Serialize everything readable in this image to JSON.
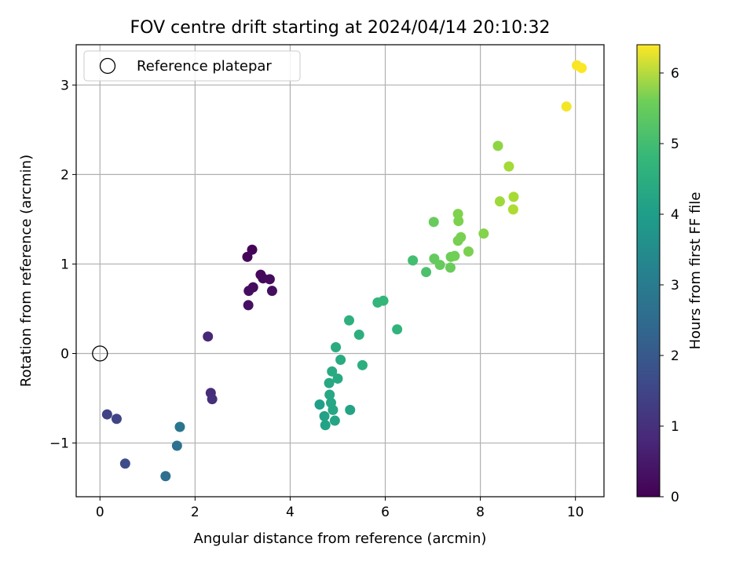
{
  "chart_data": {
    "type": "scatter",
    "title": "FOV centre drift starting at 2024/04/14 20:10:32",
    "xlabel": "Angular distance from reference (arcmin)",
    "ylabel": "Rotation from reference (arcmin)",
    "xlim": [
      -0.5,
      10.6
    ],
    "ylim": [
      -1.6,
      3.45
    ],
    "xticks": [
      0,
      2,
      4,
      6,
      8,
      10
    ],
    "yticks": [
      -1,
      0,
      1,
      2,
      3
    ],
    "xtick_labels": [
      "0",
      "2",
      "4",
      "6",
      "8",
      "10"
    ],
    "ytick_labels": [
      "−1",
      "0",
      "1",
      "2",
      "3"
    ],
    "grid": true,
    "legend": {
      "placement": "top-left",
      "entries": [
        "Reference platepar"
      ]
    },
    "colorbar": {
      "label": "Hours from first FF file",
      "range": [
        0,
        6.4
      ],
      "ticks": [
        0,
        1,
        2,
        3,
        4,
        5,
        6
      ],
      "tick_labels": [
        "0",
        "1",
        "2",
        "3",
        "4",
        "5",
        "6"
      ],
      "colormap": "viridis"
    },
    "reference_point": {
      "x": 0,
      "y": 0,
      "marker": "hollow circle"
    },
    "points": [
      {
        "x": 3.2,
        "y": 1.16,
        "h": 0.05
      },
      {
        "x": 3.1,
        "y": 1.08,
        "h": 0.1
      },
      {
        "x": 3.38,
        "y": 0.88,
        "h": 0.12
      },
      {
        "x": 3.43,
        "y": 0.84,
        "h": 0.15
      },
      {
        "x": 3.57,
        "y": 0.83,
        "h": 0.18
      },
      {
        "x": 3.22,
        "y": 0.74,
        "h": 0.2
      },
      {
        "x": 3.13,
        "y": 0.7,
        "h": 0.22
      },
      {
        "x": 3.62,
        "y": 0.7,
        "h": 0.25
      },
      {
        "x": 3.12,
        "y": 0.54,
        "h": 0.28
      },
      {
        "x": 2.27,
        "y": 0.19,
        "h": 0.7
      },
      {
        "x": 2.33,
        "y": -0.44,
        "h": 0.8
      },
      {
        "x": 2.36,
        "y": -0.51,
        "h": 0.85
      },
      {
        "x": 0.15,
        "y": -0.68,
        "h": 1.25
      },
      {
        "x": 0.35,
        "y": -0.73,
        "h": 1.3
      },
      {
        "x": 0.53,
        "y": -1.23,
        "h": 1.5
      },
      {
        "x": 1.38,
        "y": -1.37,
        "h": 2.3
      },
      {
        "x": 1.62,
        "y": -1.03,
        "h": 2.4
      },
      {
        "x": 1.68,
        "y": -0.82,
        "h": 2.5
      },
      {
        "x": 4.62,
        "y": -0.57,
        "h": 3.6
      },
      {
        "x": 4.72,
        "y": -0.7,
        "h": 3.65
      },
      {
        "x": 4.74,
        "y": -0.8,
        "h": 3.7
      },
      {
        "x": 4.94,
        "y": -0.75,
        "h": 3.75
      },
      {
        "x": 4.9,
        "y": -0.63,
        "h": 3.78
      },
      {
        "x": 4.86,
        "y": -0.55,
        "h": 3.8
      },
      {
        "x": 4.83,
        "y": -0.46,
        "h": 3.82
      },
      {
        "x": 4.82,
        "y": -0.33,
        "h": 3.85
      },
      {
        "x": 5.0,
        "y": -0.28,
        "h": 3.87
      },
      {
        "x": 4.88,
        "y": -0.2,
        "h": 3.9
      },
      {
        "x": 5.06,
        "y": -0.07,
        "h": 3.92
      },
      {
        "x": 4.96,
        "y": 0.07,
        "h": 3.95
      },
      {
        "x": 5.26,
        "y": -0.63,
        "h": 3.72
      },
      {
        "x": 5.52,
        "y": -0.13,
        "h": 4.0
      },
      {
        "x": 5.45,
        "y": 0.21,
        "h": 4.02
      },
      {
        "x": 5.24,
        "y": 0.37,
        "h": 4.05
      },
      {
        "x": 5.84,
        "y": 0.57,
        "h": 4.2
      },
      {
        "x": 5.96,
        "y": 0.59,
        "h": 4.25
      },
      {
        "x": 6.25,
        "y": 0.27,
        "h": 4.15
      },
      {
        "x": 6.58,
        "y": 1.04,
        "h": 4.45
      },
      {
        "x": 6.86,
        "y": 0.91,
        "h": 4.55
      },
      {
        "x": 7.02,
        "y": 1.47,
        "h": 4.9
      },
      {
        "x": 7.03,
        "y": 1.06,
        "h": 4.85
      },
      {
        "x": 7.15,
        "y": 0.99,
        "h": 4.88
      },
      {
        "x": 7.37,
        "y": 0.96,
        "h": 4.92
      },
      {
        "x": 7.38,
        "y": 1.08,
        "h": 4.95
      },
      {
        "x": 7.46,
        "y": 1.09,
        "h": 5.0
      },
      {
        "x": 7.53,
        "y": 1.26,
        "h": 5.05
      },
      {
        "x": 7.59,
        "y": 1.3,
        "h": 5.08
      },
      {
        "x": 7.54,
        "y": 1.48,
        "h": 5.12
      },
      {
        "x": 7.53,
        "y": 1.56,
        "h": 5.15
      },
      {
        "x": 7.75,
        "y": 1.14,
        "h": 5.1
      },
      {
        "x": 8.07,
        "y": 1.34,
        "h": 5.2
      },
      {
        "x": 8.37,
        "y": 2.32,
        "h": 5.3
      },
      {
        "x": 8.41,
        "y": 1.7,
        "h": 5.45
      },
      {
        "x": 8.6,
        "y": 2.09,
        "h": 5.5
      },
      {
        "x": 8.7,
        "y": 1.75,
        "h": 5.55
      },
      {
        "x": 8.69,
        "y": 1.61,
        "h": 5.6
      },
      {
        "x": 9.81,
        "y": 2.76,
        "h": 6.3
      },
      {
        "x": 10.03,
        "y": 3.22,
        "h": 6.35
      },
      {
        "x": 10.13,
        "y": 3.19,
        "h": 6.38
      }
    ]
  }
}
